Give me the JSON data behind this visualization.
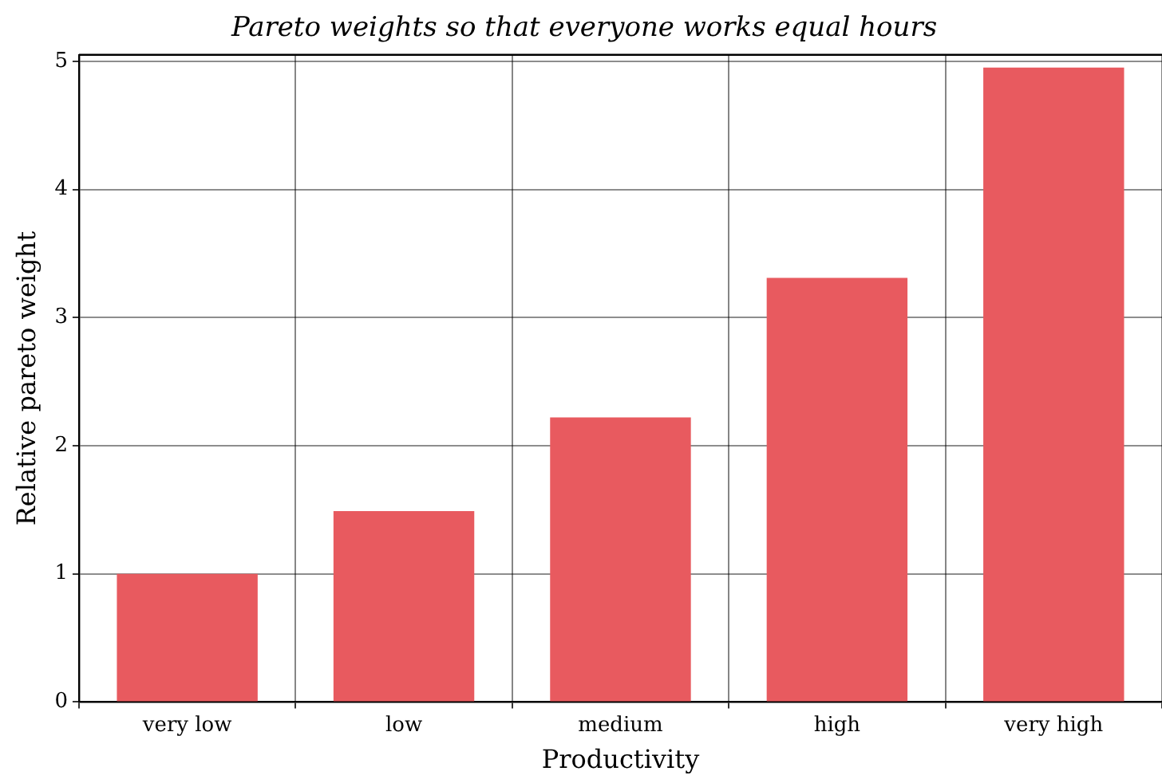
{
  "chart_data": {
    "type": "bar",
    "title": "Pareto weights so that everyone works equal hours",
    "xlabel": "Productivity",
    "ylabel": "Relative pareto weight",
    "categories": [
      "very low",
      "low",
      "medium",
      "high",
      "very high"
    ],
    "values": [
      1.0,
      1.49,
      2.22,
      3.31,
      4.95
    ],
    "color": "#e85a5f",
    "ylim": [
      0,
      5.05
    ],
    "yticks": [
      0,
      1,
      2,
      3,
      4,
      5
    ],
    "grid": true
  }
}
